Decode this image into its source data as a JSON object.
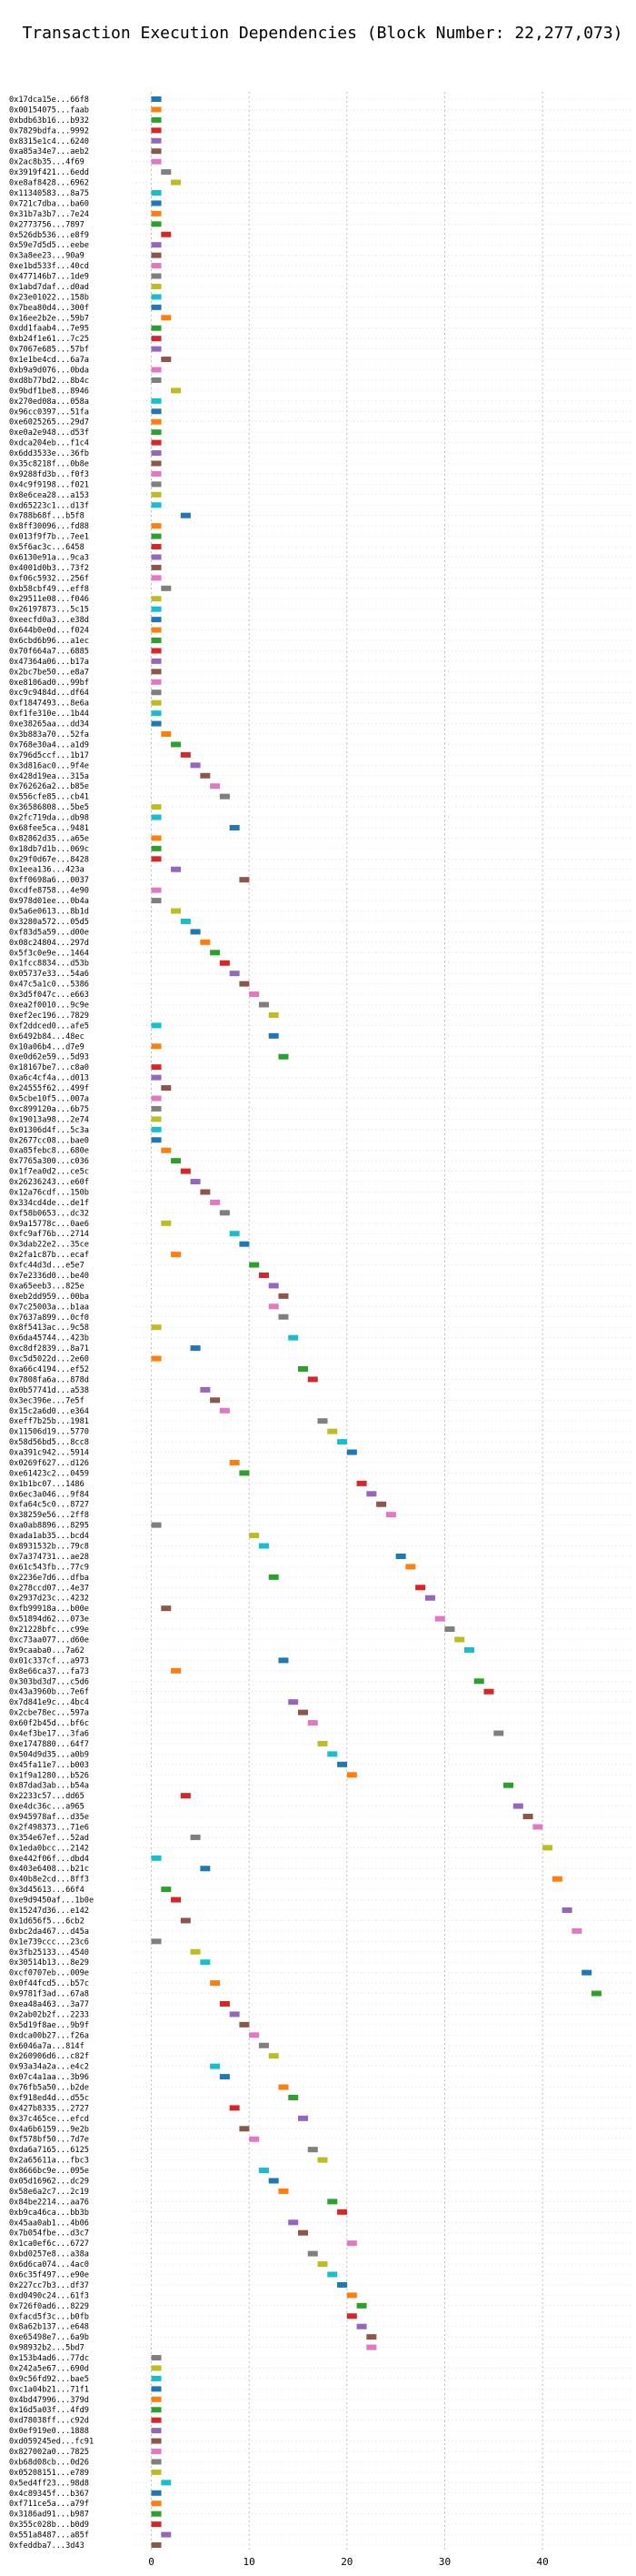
{
  "chart_data": {
    "type": "gantt",
    "title": "Transaction Execution Dependencies (Block Number: 22,277,073)",
    "xlabel": "",
    "ylabel": "",
    "xlim": [
      -2,
      49
    ],
    "xticks": [
      0,
      10,
      20,
      30,
      40
    ],
    "grid": true,
    "grid_axis": "x",
    "legend": "none",
    "palette": [
      "#1f77b4",
      "#ff7f0e",
      "#2ca02c",
      "#d62728",
      "#9467bd",
      "#8c564b",
      "#e377c2",
      "#7f7f7f",
      "#bcbd22",
      "#17becf"
    ],
    "tasks": [
      {
        "tx": "0x17dca15e...66f8",
        "start": 0
      },
      {
        "tx": "0x00154075...faab",
        "start": 0
      },
      {
        "tx": "0xbdb63b16...b932",
        "start": 0
      },
      {
        "tx": "0x7829bdfa...9992",
        "start": 0
      },
      {
        "tx": "0x8315e1c4...6240",
        "start": 0
      },
      {
        "tx": "0xa85a34e7...aeb2",
        "start": 0
      },
      {
        "tx": "0x2ac8b35...4f69",
        "start": 0
      },
      {
        "tx": "0x3919f421...6edd",
        "start": 1
      },
      {
        "tx": "0xe8af8428...6962",
        "start": 2
      },
      {
        "tx": "0x11340583...8a75",
        "start": 0
      },
      {
        "tx": "0x721c7dba...ba60",
        "start": 0
      },
      {
        "tx": "0x31b7a3b7...7e24",
        "start": 0
      },
      {
        "tx": "0x2773756...7897",
        "start": 0
      },
      {
        "tx": "0x526db536...e8f9",
        "start": 1
      },
      {
        "tx": "0x59e7d5d5...eebe",
        "start": 0
      },
      {
        "tx": "0x3a8ee23...90a9",
        "start": 0
      },
      {
        "tx": "0xe1bd533f...40cd",
        "start": 0
      },
      {
        "tx": "0x477146b7...1de9",
        "start": 0
      },
      {
        "tx": "0x1abd7daf...d0ad",
        "start": 0
      },
      {
        "tx": "0x23e01022...158b",
        "start": 0
      },
      {
        "tx": "0x7bea80d4...300f",
        "start": 0
      },
      {
        "tx": "0x16ee2b2e...59b7",
        "start": 1
      },
      {
        "tx": "0xdd1faab4...7e95",
        "start": 0
      },
      {
        "tx": "0xb24f1e61...7c25",
        "start": 0
      },
      {
        "tx": "0x7067e685...57bf",
        "start": 0
      },
      {
        "tx": "0x1e1be4cd...6a7a",
        "start": 1
      },
      {
        "tx": "0xb9a9d076...0bda",
        "start": 0
      },
      {
        "tx": "0xd8b77bd2...8b4c",
        "start": 0
      },
      {
        "tx": "0x9bdf1be8...8946",
        "start": 2
      },
      {
        "tx": "0x270ed08a...058a",
        "start": 0
      },
      {
        "tx": "0x96cc0397...51fa",
        "start": 0
      },
      {
        "tx": "0xe6025265...29d7",
        "start": 0
      },
      {
        "tx": "0xe0a2e948...d53f",
        "start": 0
      },
      {
        "tx": "0xdca204eb...f1c4",
        "start": 0
      },
      {
        "tx": "0x6dd3533e...36fb",
        "start": 0
      },
      {
        "tx": "0x35c8218f...0b8e",
        "start": 0
      },
      {
        "tx": "0x9288fd3b...f0f3",
        "start": 0
      },
      {
        "tx": "0x4c9f9198...f021",
        "start": 0
      },
      {
        "tx": "0x8e6cea28...a153",
        "start": 0
      },
      {
        "tx": "0xd65223c1...d13f",
        "start": 0
      },
      {
        "tx": "0x788b68f...b5f8",
        "start": 3
      },
      {
        "tx": "0x8ff30096...fd88",
        "start": 0
      },
      {
        "tx": "0x013f9f7b...7ee1",
        "start": 0
      },
      {
        "tx": "0x5f6ac3c...6458",
        "start": 0
      },
      {
        "tx": "0x6130e91a...9ca3",
        "start": 0
      },
      {
        "tx": "0x4001d0b3...73f2",
        "start": 0
      },
      {
        "tx": "0xf06c5932...256f",
        "start": 0
      },
      {
        "tx": "0xb58cbf49...eff8",
        "start": 1
      },
      {
        "tx": "0x29511e08...f046",
        "start": 0
      },
      {
        "tx": "0x26197873...5c15",
        "start": 0
      },
      {
        "tx": "0xeecfd0a3...e38d",
        "start": 0
      },
      {
        "tx": "0x644b0e0d...f024",
        "start": 0
      },
      {
        "tx": "0x6cbd6b96...a1ec",
        "start": 0
      },
      {
        "tx": "0x70f664a7...6885",
        "start": 0
      },
      {
        "tx": "0x47364a06...b17a",
        "start": 0
      },
      {
        "tx": "0x2bc7be50...e8a7",
        "start": 0
      },
      {
        "tx": "0xe8106ad0...99bf",
        "start": 0
      },
      {
        "tx": "0xc9c9484d...df64",
        "start": 0
      },
      {
        "tx": "0xf1847493...8e6a",
        "start": 0
      },
      {
        "tx": "0xf1fe310e...1b44",
        "start": 0
      },
      {
        "tx": "0xe38265aa...dd34",
        "start": 0
      },
      {
        "tx": "0x3b883a70...52fa",
        "start": 1
      },
      {
        "tx": "0x768e30a4...a1d9",
        "start": 2
      },
      {
        "tx": "0x796d5ccf...1b17",
        "start": 3
      },
      {
        "tx": "0x3d816ac0...9f4e",
        "start": 4
      },
      {
        "tx": "0x428d19ea...315a",
        "start": 5
      },
      {
        "tx": "0x762626a2...b85e",
        "start": 6
      },
      {
        "tx": "0x556cfe85...cb41",
        "start": 7
      },
      {
        "tx": "0x36586808...5be5",
        "start": 0
      },
      {
        "tx": "0x2fc719da...db98",
        "start": 0
      },
      {
        "tx": "0x68fee5ca...9481",
        "start": 8
      },
      {
        "tx": "0x82862d35...a65e",
        "start": 0
      },
      {
        "tx": "0x18db7d1b...069c",
        "start": 0
      },
      {
        "tx": "0x29f0d67e...8428",
        "start": 0
      },
      {
        "tx": "0x1eea136...423a",
        "start": 2
      },
      {
        "tx": "0xff0698a6...0037",
        "start": 9
      },
      {
        "tx": "0xcdfe8758...4e90",
        "start": 0
      },
      {
        "tx": "0x978d01ee...0b4a",
        "start": 0
      },
      {
        "tx": "0x5a6e0613...8b1d",
        "start": 2
      },
      {
        "tx": "0x3280a572...05d5",
        "start": 3
      },
      {
        "tx": "0xf83d5a59...d00e",
        "start": 4
      },
      {
        "tx": "0x08c24804...297d",
        "start": 5
      },
      {
        "tx": "0x5f3c0e9e...1464",
        "start": 6
      },
      {
        "tx": "0x1fcc8834...d53b",
        "start": 7
      },
      {
        "tx": "0x05737e33...54a6",
        "start": 8
      },
      {
        "tx": "0x47c5a1c0...5386",
        "start": 9
      },
      {
        "tx": "0x3d5f047c...e663",
        "start": 10
      },
      {
        "tx": "0xea2f0010...9c9e",
        "start": 11
      },
      {
        "tx": "0xef2ec196...7829",
        "start": 12
      },
      {
        "tx": "0xf2ddced0...afe5",
        "start": 0
      },
      {
        "tx": "0x6492b84...48ec",
        "start": 12
      },
      {
        "tx": "0x10a06b4...d7e9",
        "start": 0
      },
      {
        "tx": "0xe0d62e59...5d93",
        "start": 13
      },
      {
        "tx": "0x18167be7...c8a0",
        "start": 0
      },
      {
        "tx": "0xa6c4cf4a...d013",
        "start": 0
      },
      {
        "tx": "0x24555f62...499f",
        "start": 1
      },
      {
        "tx": "0x5cbe10f5...007a",
        "start": 0
      },
      {
        "tx": "0xc899120a...6b75",
        "start": 0
      },
      {
        "tx": "0x19013a98...2e74",
        "start": 0
      },
      {
        "tx": "0x01306d4f...5c3a",
        "start": 0
      },
      {
        "tx": "0x2677cc08...bae0",
        "start": 0
      },
      {
        "tx": "0xa85febc8...680e",
        "start": 1
      },
      {
        "tx": "0x7765a300...c036",
        "start": 2
      },
      {
        "tx": "0x1f7ea0d2...ce5c",
        "start": 3
      },
      {
        "tx": "0x26236243...e60f",
        "start": 4
      },
      {
        "tx": "0x12a76cdf...150b",
        "start": 5
      },
      {
        "tx": "0x334cd4de...de1f",
        "start": 6
      },
      {
        "tx": "0xf58b0653...dc32",
        "start": 7
      },
      {
        "tx": "0x9a15778c...0ae6",
        "start": 1
      },
      {
        "tx": "0xfc9af76b...2714",
        "start": 8
      },
      {
        "tx": "0x3dab22e2...35ce",
        "start": 9
      },
      {
        "tx": "0x2fa1c87b...ecaf",
        "start": 2
      },
      {
        "tx": "0xfc44d3d...e5e7",
        "start": 10
      },
      {
        "tx": "0x7e2336d0...be40",
        "start": 11
      },
      {
        "tx": "0xa65eeb3...825e",
        "start": 12
      },
      {
        "tx": "0xeb2dd959...00ba",
        "start": 13
      },
      {
        "tx": "0x7c25003a...b1aa",
        "start": 12
      },
      {
        "tx": "0x7637a899...0cf0",
        "start": 13
      },
      {
        "tx": "0x8f5413ac...9c58",
        "start": 0
      },
      {
        "tx": "0x6da45744...423b",
        "start": 14
      },
      {
        "tx": "0xc8df2839...8a71",
        "start": 4
      },
      {
        "tx": "0xc5d5022d...2e60",
        "start": 0
      },
      {
        "tx": "0xa66c4194...ef52",
        "start": 15
      },
      {
        "tx": "0x7808fa6a...878d",
        "start": 16
      },
      {
        "tx": "0x0b57741d...a538",
        "start": 5
      },
      {
        "tx": "0x3ec396e...7e5f",
        "start": 6
      },
      {
        "tx": "0x15c2a6d0...e364",
        "start": 7
      },
      {
        "tx": "0xeff7b25b...1981",
        "start": 17
      },
      {
        "tx": "0x11506d19...5770",
        "start": 18
      },
      {
        "tx": "0x58d56bd5...8cc8",
        "start": 19
      },
      {
        "tx": "0xa391c942...5914",
        "start": 20
      },
      {
        "tx": "0x0269f627...d126",
        "start": 8
      },
      {
        "tx": "0xe61423c2...0459",
        "start": 9
      },
      {
        "tx": "0x1b1bc07...1486",
        "start": 21
      },
      {
        "tx": "0x6ec3a046...9f84",
        "start": 22
      },
      {
        "tx": "0xfa64c5c0...8727",
        "start": 23
      },
      {
        "tx": "0x38259e56...2ff8",
        "start": 24
      },
      {
        "tx": "0xa0ab8896...8295",
        "start": 0
      },
      {
        "tx": "0xada1ab35...bcd4",
        "start": 10
      },
      {
        "tx": "0x8931532b...79c8",
        "start": 11
      },
      {
        "tx": "0x7a374731...ae28",
        "start": 25
      },
      {
        "tx": "0x61c543fb...77c9",
        "start": 26
      },
      {
        "tx": "0x2236e7d6...dfba",
        "start": 12
      },
      {
        "tx": "0x278ccd07...4e37",
        "start": 27
      },
      {
        "tx": "0x2937d23c...4232",
        "start": 28
      },
      {
        "tx": "0xfb99918a...b00e",
        "start": 1
      },
      {
        "tx": "0x51894d62...073e",
        "start": 29
      },
      {
        "tx": "0x21228bfc...c99e",
        "start": 30
      },
      {
        "tx": "0xc73aa077...d60e",
        "start": 31
      },
      {
        "tx": "0x9caaba0...7a62",
        "start": 32
      },
      {
        "tx": "0x01c337cf...a973",
        "start": 13
      },
      {
        "tx": "0x8e66ca37...fa73",
        "start": 2
      },
      {
        "tx": "0x303bd3d7...c5d6",
        "start": 33
      },
      {
        "tx": "0x43a3960b...7e6f",
        "start": 34
      },
      {
        "tx": "0x7d841e9c...4bc4",
        "start": 14
      },
      {
        "tx": "0x2cbe78ec...597a",
        "start": 15
      },
      {
        "tx": "0x60f2b45d...bf6c",
        "start": 16
      },
      {
        "tx": "0x4ef3be17...3fa6",
        "start": 35
      },
      {
        "tx": "0xe1747880...64f7",
        "start": 17
      },
      {
        "tx": "0x504d9d35...a0b9",
        "start": 18
      },
      {
        "tx": "0x45fa11e7...b003",
        "start": 19
      },
      {
        "tx": "0x1f9a1280...b526",
        "start": 20
      },
      {
        "tx": "0x87dad3ab...b54a",
        "start": 36
      },
      {
        "tx": "0x2233c57...dd65",
        "start": 3
      },
      {
        "tx": "0xe4dc36c...a965",
        "start": 37
      },
      {
        "tx": "0x945978af...d35e",
        "start": 38
      },
      {
        "tx": "0x2f498373...71e6",
        "start": 39
      },
      {
        "tx": "0x354e67ef...52ad",
        "start": 4
      },
      {
        "tx": "0x1eda0bcc...2142",
        "start": 40
      },
      {
        "tx": "0xe442f06f...dbd4",
        "start": 0
      },
      {
        "tx": "0x403e6408...b21c",
        "start": 5
      },
      {
        "tx": "0x40b8e2cd...8ff3",
        "start": 41
      },
      {
        "tx": "0x3d45613...66f4",
        "start": 1
      },
      {
        "tx": "0xe9d9450af...1b0e",
        "start": 2
      },
      {
        "tx": "0x15247d36...e142",
        "start": 42
      },
      {
        "tx": "0x1d656f5...6cb2",
        "start": 3
      },
      {
        "tx": "0xbc2da467...d45a",
        "start": 43
      },
      {
        "tx": "0x1e739ccc...23c6",
        "start": 0
      },
      {
        "tx": "0x3fb25133...4540",
        "start": 4
      },
      {
        "tx": "0x30514b13...8e29",
        "start": 5
      },
      {
        "tx": "0xcf0707eb...009e",
        "start": 44
      },
      {
        "tx": "0x0f44fcd5...b57c",
        "start": 6
      },
      {
        "tx": "0x9781f3ad...67a8",
        "start": 45
      },
      {
        "tx": "0xea48a463...3a77",
        "start": 7
      },
      {
        "tx": "0x2ab02b2f...2233",
        "start": 8
      },
      {
        "tx": "0x5d19f8ae...9b9f",
        "start": 9
      },
      {
        "tx": "0xdca00b27...f26a",
        "start": 10
      },
      {
        "tx": "0x6046a7a...814f",
        "start": 11
      },
      {
        "tx": "0x260906d6...c82f",
        "start": 12
      },
      {
        "tx": "0x93a34a2a...e4c2",
        "start": 6
      },
      {
        "tx": "0x07c4a1aa...3b96",
        "start": 7
      },
      {
        "tx": "0x76fb5a50...b2de",
        "start": 13
      },
      {
        "tx": "0xf918ed4d...d55c",
        "start": 14
      },
      {
        "tx": "0x427b8335...2727",
        "start": 8
      },
      {
        "tx": "0x37c465ce...efcd",
        "start": 15
      },
      {
        "tx": "0x4a6b6159...9e2b",
        "start": 9
      },
      {
        "tx": "0xf578bf50...7d7e",
        "start": 10
      },
      {
        "tx": "0xda6a7165...6125",
        "start": 16
      },
      {
        "tx": "0x2a65611a...fbc3",
        "start": 17
      },
      {
        "tx": "0x8666bc9e...095e",
        "start": 11
      },
      {
        "tx": "0x05d16962...dc29",
        "start": 12
      },
      {
        "tx": "0x58e6a2c7...2c19",
        "start": 13
      },
      {
        "tx": "0x84be2214...aa76",
        "start": 18
      },
      {
        "tx": "0xb9ca46ca...bb3b",
        "start": 19
      },
      {
        "tx": "0x45aa0ab1...4b06",
        "start": 14
      },
      {
        "tx": "0x7b054fbe...d3c7",
        "start": 15
      },
      {
        "tx": "0x1ca0ef6c...6727",
        "start": 20
      },
      {
        "tx": "0xbd0257e8...a38a",
        "start": 16
      },
      {
        "tx": "0x6d6ca074...4ac0",
        "start": 17
      },
      {
        "tx": "0x6c35f497...e90e",
        "start": 18
      },
      {
        "tx": "0x227cc7b3...df37",
        "start": 19
      },
      {
        "tx": "0xd0490c24...61f3",
        "start": 20
      },
      {
        "tx": "0x726f0ad6...8229",
        "start": 21
      },
      {
        "tx": "0xfacd5f3c...b0fb",
        "start": 20
      },
      {
        "tx": "0x8a62b137...e648",
        "start": 21
      },
      {
        "tx": "0xe65498e7...6a9b",
        "start": 22
      },
      {
        "tx": "0x98932b2...5bd7",
        "start": 22
      },
      {
        "tx": "0x153b4ad6...77dc",
        "start": 0
      },
      {
        "tx": "0x242a5e67...690d",
        "start": 0
      },
      {
        "tx": "0x9c56fd92...bae5",
        "start": 0
      },
      {
        "tx": "0xc1a04b21...71f1",
        "start": 0
      },
      {
        "tx": "0x4bd47996...379d",
        "start": 0
      },
      {
        "tx": "0x16d5a03f...4fd9",
        "start": 0
      },
      {
        "tx": "0xd78038ff...c92d",
        "start": 0
      },
      {
        "tx": "0x0ef919e0...1888",
        "start": 0
      },
      {
        "tx": "0xd059245ed...fc91",
        "start": 0
      },
      {
        "tx": "0x827002a0...7825",
        "start": 0
      },
      {
        "tx": "0xb68d08cb...0d26",
        "start": 0
      },
      {
        "tx": "0x05208151...e789",
        "start": 0
      },
      {
        "tx": "0x5ed4ff23...98d8",
        "start": 1
      },
      {
        "tx": "0x4c89345f...b367",
        "start": 0
      },
      {
        "tx": "0xf711ce5a...a79f",
        "start": 0
      },
      {
        "tx": "0x3186ad91...b987",
        "start": 0
      },
      {
        "tx": "0x355c028b...b0d9",
        "start": 0
      },
      {
        "tx": "0x551a8487...a85f",
        "start": 1
      },
      {
        "tx": "0xfeddba7...3d43",
        "start": 0
      }
    ]
  }
}
